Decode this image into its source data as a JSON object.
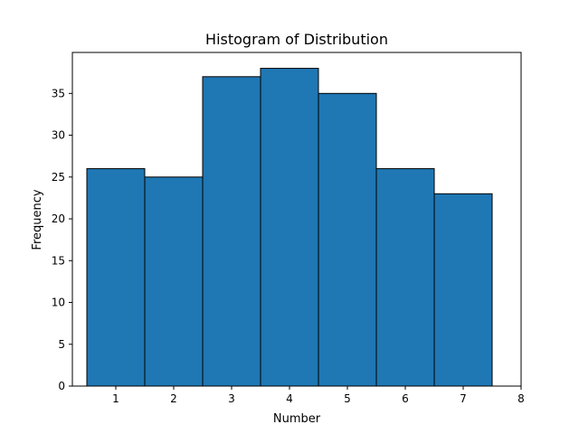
{
  "chart_data": {
    "type": "bar",
    "title": "Histogram of Distribution",
    "xlabel": "Number",
    "ylabel": "Frequency",
    "categories": [
      "1",
      "2",
      "3",
      "4",
      "5",
      "6",
      "7"
    ],
    "x": [
      1,
      2,
      3,
      4,
      5,
      6,
      7
    ],
    "values": [
      26,
      25,
      37,
      38,
      35,
      26,
      23
    ],
    "bar_width": 1,
    "xlim": [
      0.25,
      8
    ],
    "ylim": [
      0,
      39.9
    ],
    "xticks": [
      1,
      2,
      3,
      4,
      5,
      6,
      7,
      8
    ],
    "yticks": [
      0,
      5,
      10,
      15,
      20,
      25,
      30,
      35
    ],
    "bar_color": "#1f77b4",
    "edge_color": "#000000",
    "grid": false,
    "legend": "none"
  }
}
